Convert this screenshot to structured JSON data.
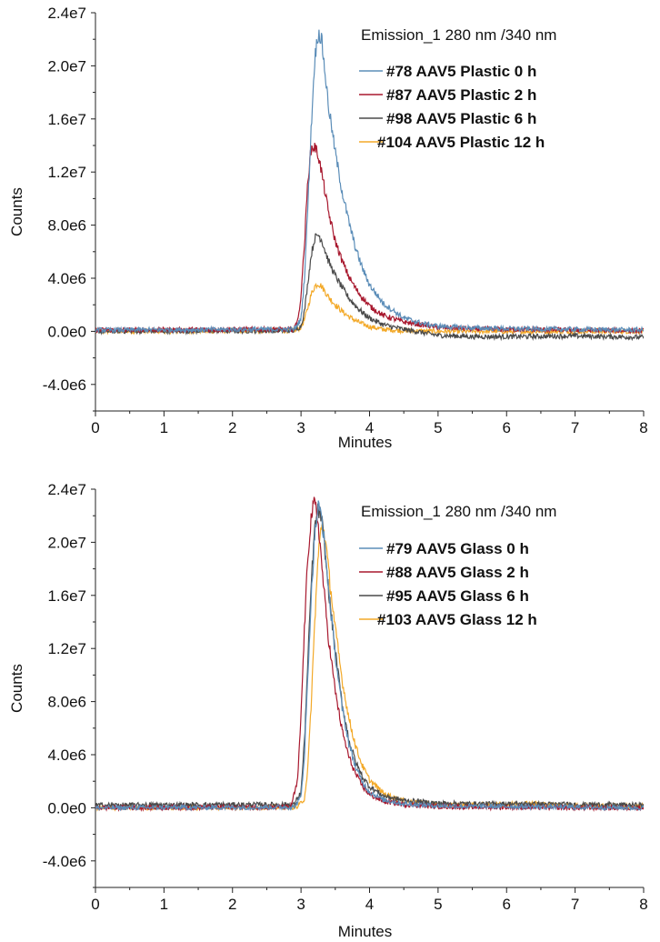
{
  "chart_data": [
    {
      "type": "line",
      "annotation": "Emission_1 280 nm /340 nm",
      "xlabel": "Minutes",
      "ylabel": "Counts",
      "xlim": [
        0,
        8
      ],
      "ylim": [
        -6000000,
        24000000
      ],
      "x_ticks": [
        "0",
        "1",
        "2",
        "3",
        "4",
        "5",
        "6",
        "7",
        "8"
      ],
      "y_ticks": [
        {
          "value": 24000000,
          "label": "2.4e7"
        },
        {
          "value": 20000000,
          "label": "2.0e7"
        },
        {
          "value": 16000000,
          "label": "1.6e7"
        },
        {
          "value": 12000000,
          "label": "1.2e7"
        },
        {
          "value": 8000000,
          "label": "8.0e6"
        },
        {
          "value": 4000000,
          "label": "4.0e6"
        },
        {
          "value": 0,
          "label": "0.0e0"
        },
        {
          "value": -4000000,
          "label": "-4.0e6"
        }
      ],
      "grid": false,
      "legend_position": "top-right",
      "series": [
        {
          "name": "#78 AAV5 Plastic 0 h",
          "color": "#5b8db8",
          "x": [
            0,
            2.9,
            3.0,
            3.05,
            3.1,
            3.15,
            3.2,
            3.25,
            3.3,
            3.35,
            3.4,
            3.5,
            3.6,
            3.7,
            3.8,
            3.9,
            4.0,
            4.2,
            4.5,
            4.8,
            5.0,
            5.5,
            6.0,
            7.0,
            8.0
          ],
          "y": [
            100000,
            150000,
            900000,
            4000000,
            9500000,
            15500000,
            20500000,
            22500000,
            22000000,
            19500000,
            17000000,
            13500000,
            10500000,
            8200000,
            6200000,
            4700000,
            3500000,
            2100000,
            1000000,
            550000,
            400000,
            250000,
            200000,
            150000,
            100000
          ]
        },
        {
          "name": "#87 AAV5 Plastic 2 h",
          "color": "#a8182e",
          "x": [
            0,
            2.9,
            2.98,
            3.05,
            3.1,
            3.15,
            3.2,
            3.25,
            3.3,
            3.35,
            3.4,
            3.5,
            3.6,
            3.7,
            3.8,
            3.9,
            4.0,
            4.2,
            4.5,
            5.0,
            5.5,
            6.0,
            7.0,
            8.0
          ],
          "y": [
            100000,
            150000,
            1500000,
            6500000,
            11500000,
            13800000,
            13900000,
            13300000,
            12000000,
            10500000,
            9000000,
            6800000,
            5300000,
            4100000,
            3200000,
            2500000,
            1900000,
            1200000,
            700000,
            300000,
            200000,
            150000,
            100000,
            50000
          ]
        },
        {
          "name": "#98 AAV5  Plastic 6 h",
          "color": "#4a4a4a",
          "x": [
            0,
            2.9,
            3.0,
            3.05,
            3.1,
            3.15,
            3.2,
            3.25,
            3.3,
            3.35,
            3.4,
            3.5,
            3.6,
            3.7,
            3.8,
            3.9,
            4.0,
            4.2,
            4.5,
            5.0,
            5.5,
            6.0,
            7.0,
            8.0
          ],
          "y": [
            0,
            50000,
            400000,
            1500000,
            3700000,
            5800000,
            7000000,
            7300000,
            6900000,
            6100000,
            5300000,
            4200000,
            3300000,
            2500000,
            1900000,
            1400000,
            1000000,
            500000,
            150000,
            -300000,
            -400000,
            -400000,
            -350000,
            -450000
          ]
        },
        {
          "name": "#104 AAV5 Plastic 12 h",
          "color": "#f3a928",
          "x": [
            0,
            2.9,
            3.0,
            3.05,
            3.1,
            3.15,
            3.2,
            3.25,
            3.3,
            3.35,
            3.4,
            3.5,
            3.6,
            3.7,
            3.8,
            3.9,
            4.0,
            4.2,
            4.5,
            5.0,
            5.5,
            6.0,
            7.0,
            8.0
          ],
          "y": [
            0,
            50000,
            300000,
            900000,
            1800000,
            2800000,
            3400000,
            3600000,
            3400000,
            3000000,
            2600000,
            2000000,
            1500000,
            1100000,
            800000,
            550000,
            350000,
            150000,
            50000,
            0,
            0,
            0,
            0,
            0
          ]
        }
      ]
    },
    {
      "type": "line",
      "annotation": "Emission_1 280 nm /340 nm",
      "xlabel": "Minutes",
      "ylabel": "Counts",
      "xlim": [
        0,
        8
      ],
      "ylim": [
        -6000000,
        24000000
      ],
      "x_ticks": [
        "0",
        "1",
        "2",
        "3",
        "4",
        "5",
        "6",
        "7",
        "8"
      ],
      "y_ticks": [
        {
          "value": 24000000,
          "label": "2.4e7"
        },
        {
          "value": 20000000,
          "label": "2.0e7"
        },
        {
          "value": 16000000,
          "label": "1.6e7"
        },
        {
          "value": 12000000,
          "label": "1.2e7"
        },
        {
          "value": 8000000,
          "label": "8.0e6"
        },
        {
          "value": 4000000,
          "label": "4.0e6"
        },
        {
          "value": 0,
          "label": "0.0e0"
        },
        {
          "value": -4000000,
          "label": "-4.0e6"
        }
      ],
      "grid": false,
      "legend_position": "top-right",
      "series": [
        {
          "name": "#79 AAV5 Glass 0 h",
          "color": "#5b8db8",
          "x": [
            0,
            2.9,
            3.0,
            3.05,
            3.1,
            3.15,
            3.2,
            3.25,
            3.3,
            3.35,
            3.4,
            3.5,
            3.6,
            3.7,
            3.8,
            3.9,
            4.0,
            4.2,
            4.5,
            5.0,
            5.5,
            6.0,
            7.0,
            8.0
          ],
          "y": [
            0,
            50000,
            800000,
            4000000,
            10000000,
            16000000,
            20500000,
            22700000,
            22000000,
            19500000,
            16500000,
            11500000,
            7500000,
            4800000,
            3000000,
            1900000,
            1200000,
            600000,
            300000,
            150000,
            100000,
            100000,
            50000,
            0
          ]
        },
        {
          "name": "#88 AAV5 Glass 2 h",
          "color": "#a8182e",
          "x": [
            0,
            2.85,
            2.95,
            3.0,
            3.05,
            3.1,
            3.15,
            3.2,
            3.25,
            3.3,
            3.35,
            3.4,
            3.5,
            3.6,
            3.7,
            3.8,
            3.9,
            4.0,
            4.2,
            4.5,
            5.0,
            5.5,
            6.0,
            7.0,
            8.0
          ],
          "y": [
            0,
            50000,
            2000000,
            7000000,
            13500000,
            19000000,
            22000000,
            23000000,
            21500000,
            18500000,
            15500000,
            12800000,
            8800000,
            5800000,
            3800000,
            2500000,
            1600000,
            1000000,
            500000,
            250000,
            100000,
            50000,
            50000,
            0,
            0
          ]
        },
        {
          "name": "#95 AAV5 Glass 6 h",
          "color": "#4a4a4a",
          "x": [
            0,
            2.9,
            3.0,
            3.05,
            3.1,
            3.15,
            3.2,
            3.25,
            3.3,
            3.35,
            3.4,
            3.5,
            3.6,
            3.7,
            3.8,
            3.9,
            4.0,
            4.2,
            4.5,
            5.0,
            5.5,
            6.0,
            7.0,
            8.0
          ],
          "y": [
            200000,
            250000,
            1200000,
            5000000,
            11000000,
            17000000,
            21000000,
            22500000,
            21800000,
            19300000,
            16500000,
            11800000,
            7800000,
            5100000,
            3400000,
            2300000,
            1600000,
            900000,
            550000,
            350000,
            300000,
            300000,
            250000,
            200000
          ]
        },
        {
          "name": "#103 AAV5 Glass 12 h",
          "color": "#f3a928",
          "x": [
            0,
            2.95,
            3.05,
            3.1,
            3.15,
            3.2,
            3.25,
            3.3,
            3.35,
            3.4,
            3.45,
            3.5,
            3.6,
            3.7,
            3.8,
            3.9,
            4.0,
            4.2,
            4.5,
            5.0,
            5.5,
            6.0,
            6.3,
            6.6,
            7.0,
            8.0
          ],
          "y": [
            0,
            50000,
            700000,
            3000000,
            8000000,
            14000000,
            19000000,
            21300000,
            20500000,
            18000000,
            15700000,
            13500000,
            9600000,
            6700000,
            4600000,
            3100000,
            2100000,
            1100000,
            500000,
            250000,
            200000,
            250000,
            350000,
            250000,
            150000,
            100000
          ]
        }
      ]
    }
  ]
}
